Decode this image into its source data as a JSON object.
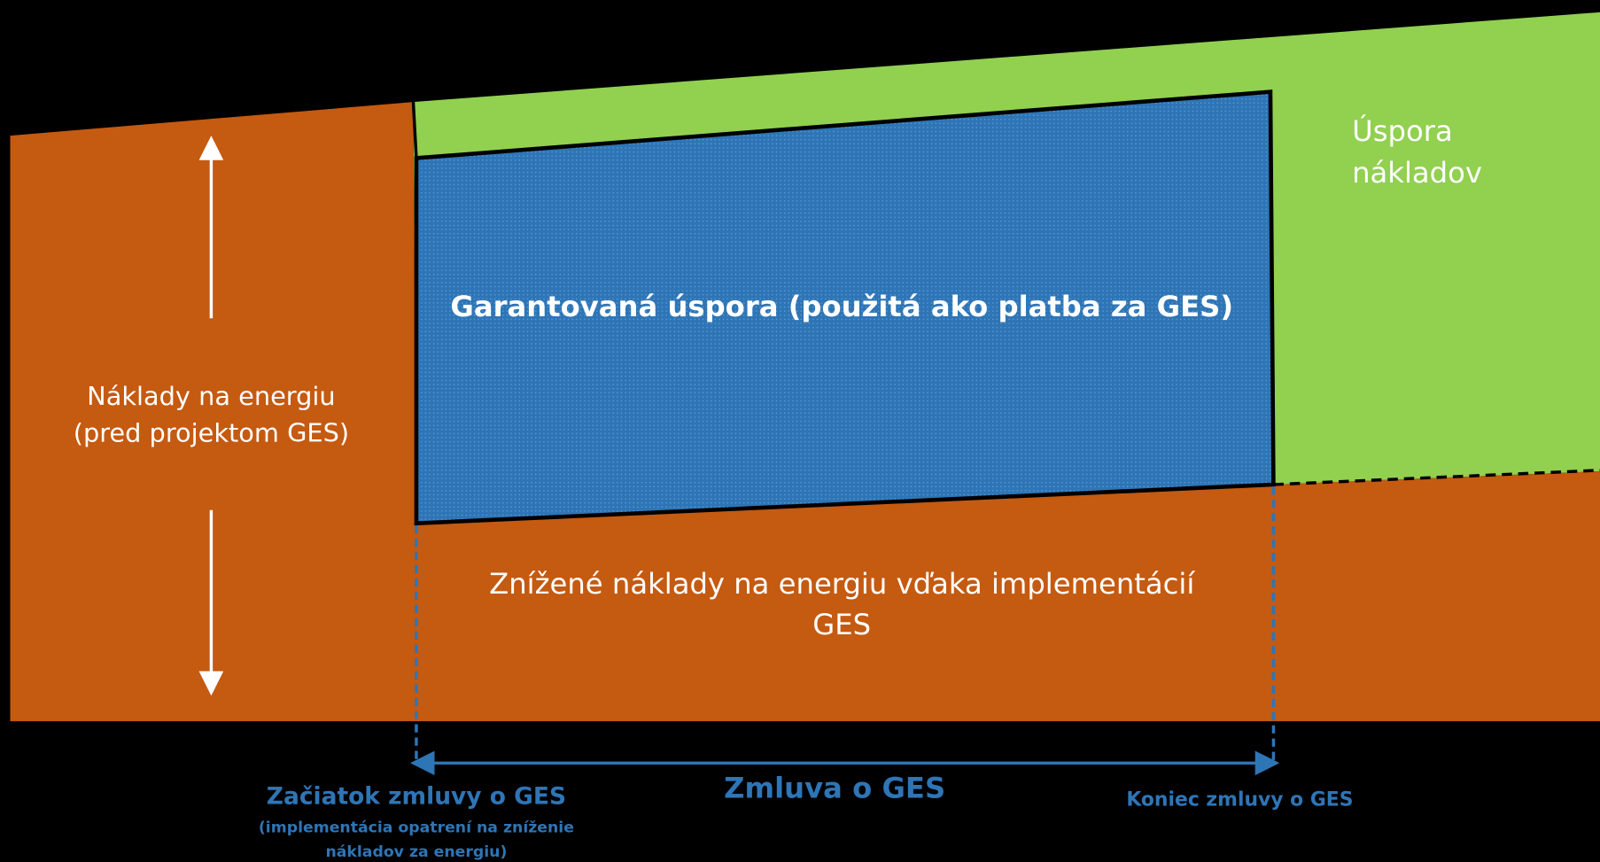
{
  "regions": {
    "baseline_cost": {
      "label_line1": "Náklady na energiu",
      "label_line2": "(pred projektom GES)"
    },
    "guaranteed_savings": {
      "label": "Garantovaná úspora (použitá ako platba za GES)"
    },
    "cost_savings": {
      "label_line1": "Úspora",
      "label_line2": "nákladov"
    },
    "reduced_cost": {
      "label_line1": "Znížené náklady na energiu vďaka implementácií",
      "label_line2": "GES"
    }
  },
  "timeline": {
    "contract": "Zmluva o GES",
    "start": "Začiatok zmluvy o GES",
    "start_note_line1": "(implementácia opatrení na zníženie",
    "start_note_line2": "nákladov za energiu)",
    "end": "Koniec zmluvy o GES"
  }
}
